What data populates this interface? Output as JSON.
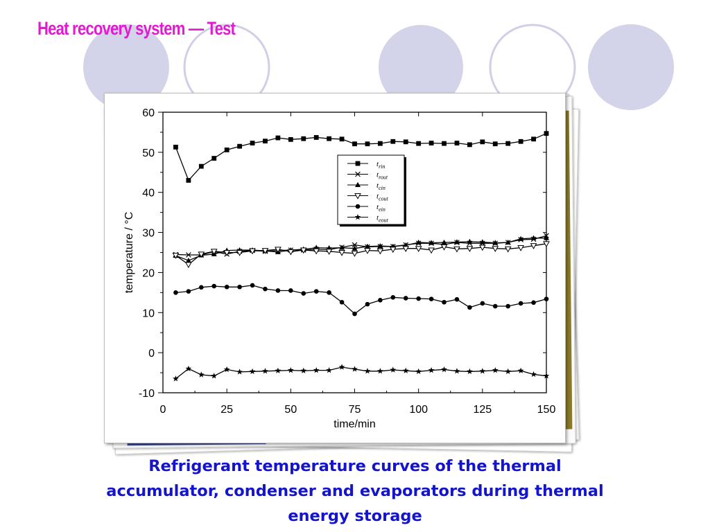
{
  "slide": {
    "title": "Heat recovery system — Test",
    "caption_lines": [
      "Refrigerant temperature curves of the thermal",
      "accumulator, condenser and evaporators during thermal",
      "energy storage"
    ],
    "title_color": "#e21bd0",
    "caption_color": "#1414cc",
    "circle_color": "#d3d3ea"
  },
  "chart_data": {
    "type": "line",
    "xlabel": "time/min",
    "ylabel": "temperature / °C",
    "xlim": [
      0,
      150
    ],
    "ylim": [
      -10,
      60
    ],
    "xticks": [
      0,
      25,
      50,
      75,
      100,
      125,
      150
    ],
    "yticks": [
      -10,
      0,
      10,
      20,
      30,
      40,
      50,
      60
    ],
    "grid": false,
    "legend_position": "top-center",
    "x": [
      5,
      10,
      15,
      20,
      25,
      30,
      35,
      40,
      45,
      50,
      55,
      60,
      65,
      70,
      75,
      80,
      85,
      90,
      95,
      100,
      105,
      110,
      115,
      120,
      125,
      130,
      135,
      140,
      145,
      150
    ],
    "series": [
      {
        "name": "t",
        "sub": "rin",
        "marker": "square",
        "values": [
          51.3,
          43.0,
          46.5,
          48.5,
          50.6,
          51.5,
          52.3,
          52.8,
          53.6,
          53.2,
          53.4,
          53.7,
          53.4,
          53.3,
          52.1,
          52.1,
          52.2,
          52.7,
          52.6,
          52.2,
          52.3,
          52.2,
          52.3,
          51.9,
          52.6,
          52.1,
          52.2,
          52.7,
          53.3,
          54.7
        ]
      },
      {
        "name": "t",
        "sub": "rout",
        "marker": "x",
        "values": [
          24.5,
          24.4,
          24.4,
          25.2,
          24.6,
          25.3,
          25.5,
          25.3,
          25.5,
          25.6,
          25.6,
          25.8,
          25.7,
          26.3,
          26.9,
          26.4,
          26.5,
          26.5,
          26.9,
          27.3,
          27.3,
          27.0,
          27.5,
          27.3,
          27.3,
          27.3,
          27.5,
          28.2,
          28.3,
          29.2
        ]
      },
      {
        "name": "t",
        "sub": "cin",
        "marker": "triangle-up",
        "values": [
          24.2,
          23.0,
          24.3,
          24.6,
          25.5,
          25.6,
          25.6,
          25.4,
          25.1,
          25.6,
          25.8,
          26.2,
          26.1,
          26.2,
          26.0,
          26.5,
          26.6,
          26.5,
          26.8,
          27.5,
          27.4,
          27.5,
          27.6,
          27.7,
          27.6,
          27.4,
          27.5,
          28.4,
          28.6,
          28.6
        ]
      },
      {
        "name": "t",
        "sub": "cout",
        "marker": "triangle-down",
        "values": [
          24.3,
          22.0,
          24.6,
          25.3,
          25.0,
          25.0,
          25.4,
          25.5,
          25.8,
          25.2,
          25.6,
          25.4,
          25.3,
          25.0,
          24.8,
          25.5,
          25.4,
          25.8,
          26.0,
          26.0,
          25.6,
          26.4,
          25.9,
          26.0,
          26.3,
          26.0,
          25.9,
          26.2,
          26.7,
          27.2
        ]
      },
      {
        "name": "t",
        "sub": "ein",
        "marker": "circle",
        "values": [
          15.0,
          15.3,
          16.3,
          16.6,
          16.4,
          16.4,
          16.8,
          15.9,
          15.5,
          15.5,
          14.8,
          15.3,
          15.0,
          12.6,
          9.7,
          12.1,
          13.1,
          13.8,
          13.6,
          13.5,
          13.4,
          12.6,
          13.3,
          11.3,
          12.3,
          11.6,
          11.6,
          12.3,
          12.5,
          13.4
        ]
      },
      {
        "name": "t",
        "sub": "eout",
        "marker": "star",
        "values": [
          -6.5,
          -4.0,
          -5.5,
          -5.8,
          -4.2,
          -4.8,
          -4.7,
          -4.6,
          -4.5,
          -4.4,
          -4.5,
          -4.4,
          -4.4,
          -3.6,
          -4.1,
          -4.6,
          -4.6,
          -4.3,
          -4.5,
          -4.7,
          -4.4,
          -4.2,
          -4.6,
          -4.7,
          -4.6,
          -4.4,
          -4.7,
          -4.5,
          -5.4,
          -5.8
        ]
      }
    ]
  }
}
